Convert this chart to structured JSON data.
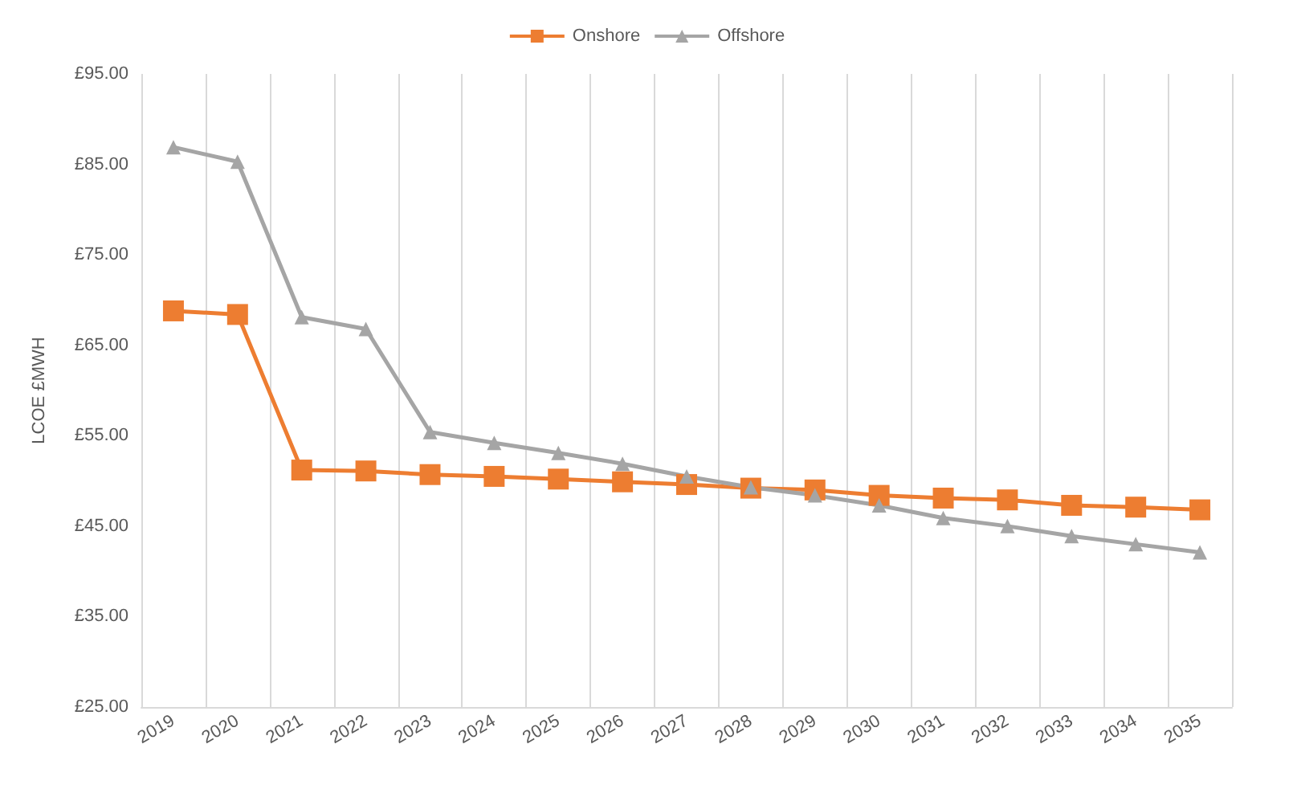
{
  "chart_data": {
    "type": "line",
    "ylabel": "LCOE £MWH",
    "categories": [
      "2019",
      "2020",
      "2021",
      "2022",
      "2023",
      "2024",
      "2025",
      "2026",
      "2027",
      "2028",
      "2029",
      "2030",
      "2031",
      "2032",
      "2033",
      "2034",
      "2035"
    ],
    "series": [
      {
        "name": "Onshore",
        "color": "#ed7d31",
        "marker": "square",
        "values": [
          68.8,
          68.4,
          51.2,
          51.1,
          50.7,
          50.5,
          50.2,
          49.9,
          49.6,
          49.2,
          49.0,
          48.4,
          48.1,
          47.9,
          47.3,
          47.1,
          46.8
        ]
      },
      {
        "name": "Offshore",
        "color": "#a5a5a5",
        "marker": "triangle",
        "values": [
          86.9,
          85.3,
          68.1,
          66.8,
          55.4,
          54.2,
          53.1,
          51.9,
          50.5,
          49.3,
          48.4,
          47.3,
          45.9,
          45.0,
          43.9,
          43.0,
          42.1
        ]
      }
    ],
    "ylim": [
      25,
      95
    ],
    "yticks": [
      {
        "value": 25,
        "label": "£25.00"
      },
      {
        "value": 35,
        "label": "£35.00"
      },
      {
        "value": 45,
        "label": "£45.00"
      },
      {
        "value": 55,
        "label": "£55.00"
      },
      {
        "value": 65,
        "label": "£65.00"
      },
      {
        "value": 75,
        "label": "£75.00"
      },
      {
        "value": 85,
        "label": "£85.00"
      },
      {
        "value": 95,
        "label": "£95.00"
      }
    ],
    "grid": "x",
    "legend": "top"
  }
}
